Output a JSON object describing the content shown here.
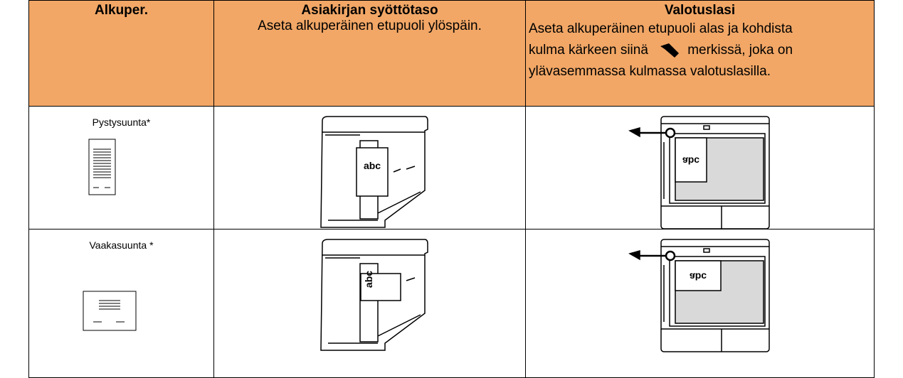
{
  "table": {
    "header": [
      {
        "title": "Alkuper."
      },
      {
        "title": "Asiakirjan syöttötaso",
        "text": "Aseta alkuperäinen etupuoli ylöspäin."
      },
      {
        "title": "Valotuslasi",
        "lines": [
          "Aseta alkuperäinen etupuoli alas ja kohdista",
          "kulma kärkeen siinä",
          "merkissä, joka on",
          "ylävasemmassa kulmassa valotuslasilla."
        ]
      }
    ],
    "rows": [
      {
        "label": "Pystysuunta*",
        "feeder_label": "abc",
        "glass_label": "abc"
      },
      {
        "label": "Vaakasuunta *",
        "feeder_label": "abc",
        "glass_label": "abc"
      }
    ]
  }
}
